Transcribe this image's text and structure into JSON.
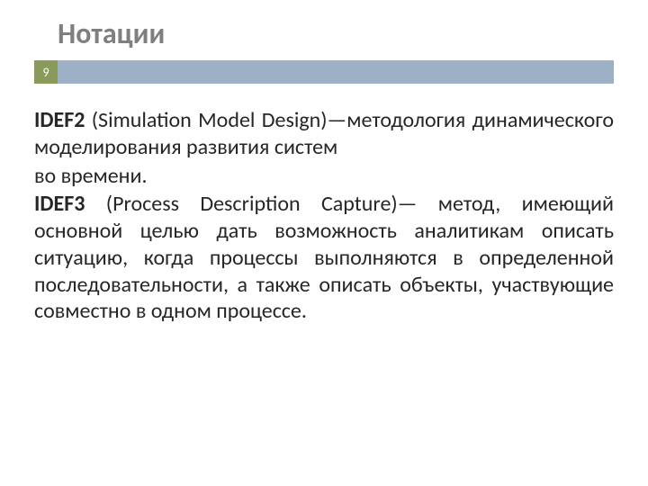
{
  "slide": {
    "title": "Нотации",
    "page_number": "9",
    "colors": {
      "title_color": "#7f7f7f",
      "bar_color": "#9db0c6",
      "badge_bg": "#8a9a5b",
      "badge_text": "#ffffff",
      "body_text": "#262626",
      "background": "#ffffff"
    },
    "typography": {
      "title_fontsize": 32,
      "body_fontsize": 24,
      "badge_fontsize": 14
    },
    "content": {
      "p1_bold": "IDEF2",
      "p1_rest": " (Simulation Model Design)—методология динамического моделирования развития систем",
      "p2": "во времени.",
      "p3_bold": "IDEF3",
      "p3_rest": " (Process Description Capture)— метод, имеющий основной целью дать возможность аналитикам описать ситуацию, когда процессы выполняются в определенной последовательности, а также описать объекты, участвующие совместно в одном процессе."
    }
  }
}
